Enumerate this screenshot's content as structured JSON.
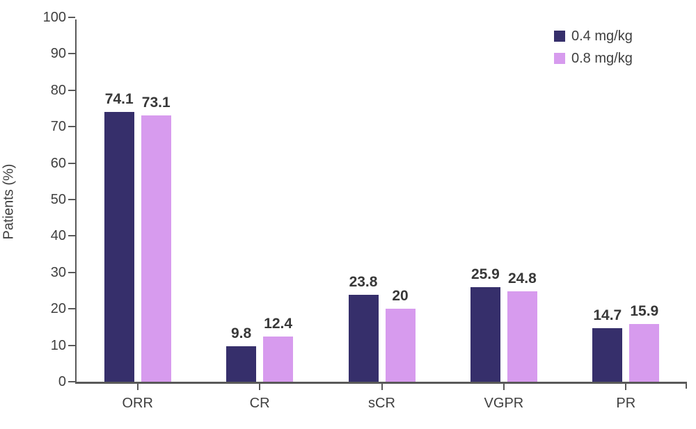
{
  "chart_data": {
    "type": "bar",
    "title": "",
    "xlabel": "",
    "ylabel": "Patients (%)",
    "ylim": [
      0,
      100
    ],
    "ytick_step": 10,
    "grid": false,
    "legend_position": "top-right",
    "categories": [
      "ORR",
      "CR",
      "sCR",
      "VGPR",
      "PR"
    ],
    "series": [
      {
        "name": "0.4 mg/kg",
        "color": "#362f6b",
        "values": [
          74.1,
          9.8,
          23.8,
          25.9,
          14.7
        ],
        "labels": [
          "74.1",
          "9.8",
          "23.8",
          "25.9",
          "14.7"
        ]
      },
      {
        "name": "0.8 mg/kg",
        "color": "#d79bee",
        "values": [
          73.1,
          12.4,
          20,
          24.8,
          15.9
        ],
        "labels": [
          "73.1",
          "12.4",
          "20",
          "24.8",
          "15.9"
        ]
      }
    ]
  },
  "colors": {
    "axis": "#595959",
    "tick_text": "#404040",
    "value_label_text": "#383838",
    "background": "#ffffff"
  }
}
